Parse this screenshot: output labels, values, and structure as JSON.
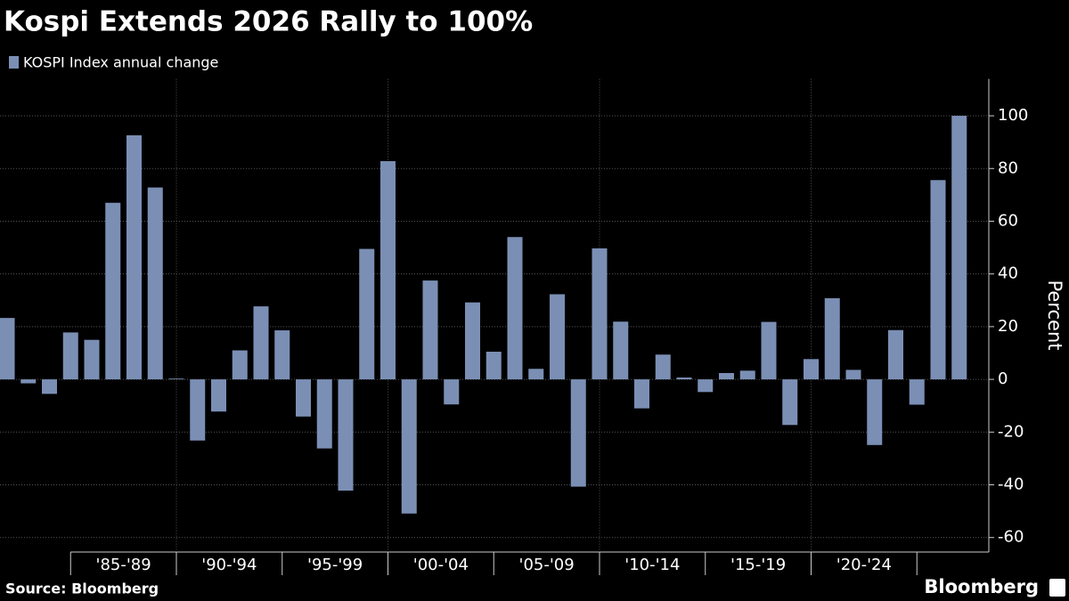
{
  "chart_data": {
    "type": "bar",
    "title": "Kospi Extends 2026 Rally to 100%",
    "series": [
      {
        "name": "KOSPI Index annual change",
        "color": "#7b8fb5",
        "values": [
          23.3,
          -1.5,
          -5.5,
          17.8,
          15,
          67,
          92.6,
          72.8,
          0.3,
          -23.2,
          -12.2,
          11,
          27.7,
          18.6,
          -14.1,
          -26.2,
          -42.2,
          49.5,
          82.8,
          -50.9,
          37.5,
          -9.5,
          29.2,
          10.5,
          54,
          4,
          32.3,
          -40.7,
          49.7,
          21.9,
          -11,
          9.4,
          0.7,
          -4.8,
          2.4,
          3.3,
          21.8,
          -17.3,
          7.7,
          30.8,
          3.6,
          -24.9,
          18.7,
          -9.6,
          75.6,
          100
        ]
      }
    ],
    "categories": [
      null,
      null,
      null,
      null,
      null,
      null,
      null,
      null,
      null,
      null,
      null,
      null,
      null,
      null,
      null,
      null,
      null,
      null,
      null,
      null,
      null,
      null,
      null,
      null,
      null,
      null,
      null,
      null,
      null,
      null,
      null,
      null,
      null,
      null,
      null,
      null,
      null,
      null,
      null,
      null,
      null,
      null,
      null,
      null,
      null,
      null
    ],
    "x_groups": [
      "'85-'89",
      "'90-'94",
      "'95-'99",
      "'00-'04",
      "'05-'09",
      "'10-'14",
      "'15-'19",
      "'20-'24"
    ],
    "y_label": "Percent",
    "ylim": [
      -65.5,
      114
    ],
    "yticks": [
      -60,
      -40,
      -20,
      0,
      20,
      40,
      60,
      80,
      100
    ],
    "grid": true
  },
  "footer": {
    "source": "Source: Bloomberg",
    "brand": "Bloomberg"
  }
}
